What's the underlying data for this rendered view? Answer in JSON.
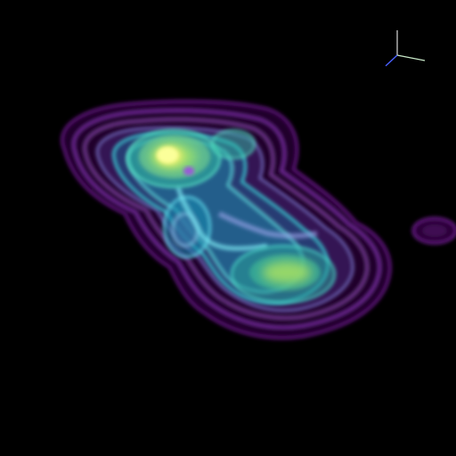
{
  "viewport": {
    "background_color": "#000000",
    "render_style": "volumetric-isosurface",
    "colormap": [
      "#5a0a78",
      "#9a3ad0",
      "#7a88e8",
      "#39d6dc",
      "#2fb8a0",
      "#a8e060",
      "#f2f27a"
    ],
    "orientation_axes_icon": "xyz-axes-icon",
    "axis_colors": {
      "x": "#c8e8c8",
      "y": "#4a60ff",
      "z": "#d8d8d8"
    }
  }
}
